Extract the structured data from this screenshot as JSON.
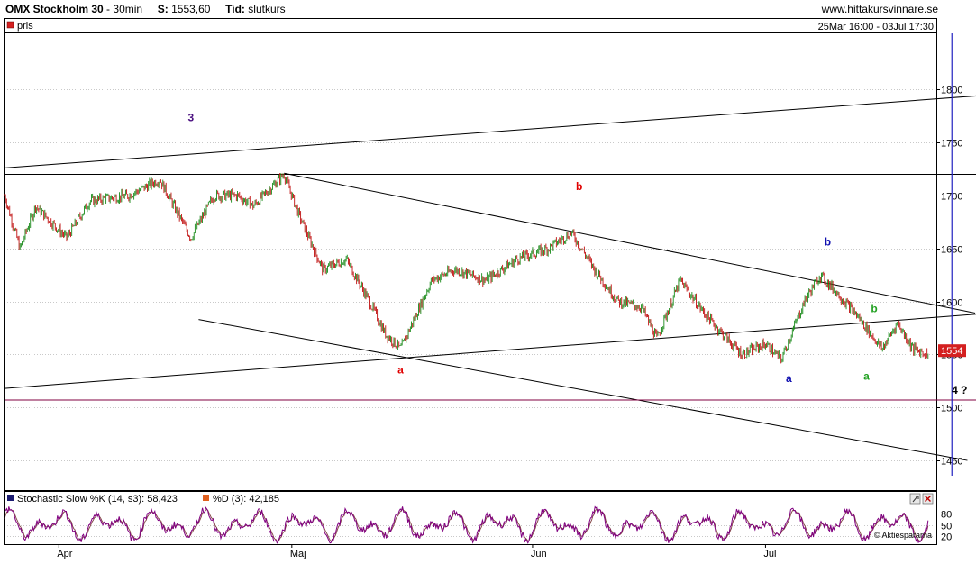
{
  "header": {
    "instrument": "OMX Stockholm 30",
    "interval": "30min",
    "last_label": "S:",
    "last_value": "1553,60",
    "time_label": "Tid:",
    "time_value": "slutkurs",
    "site": "www.hittakursvinnare.se",
    "date_range": "25Mar 16:00 - 03Jul 17:30"
  },
  "legend": {
    "price_label": "pris"
  },
  "colors": {
    "price_up": "#1a8a1a",
    "price_down": "#c01010",
    "last_price_badge": "#d42020",
    "vertical_marker": "#2020c0",
    "support_line": "#800040",
    "stoch_k": "#800080",
    "stoch_d": "#804040",
    "label_purple": "#4b1080",
    "label_red": "#e00000",
    "label_blue": "#1010b0",
    "label_green": "#20a020"
  },
  "chart_data": {
    "type": "line",
    "title": "OMX Stockholm 30",
    "interval": "30min",
    "y_axis": {
      "ticks": [
        1450,
        1500,
        1550,
        1600,
        1650,
        1700,
        1750,
        1800
      ],
      "range": [
        1422,
        1853
      ],
      "position": "right"
    },
    "x_axis": {
      "labels": [
        "Apr",
        "Maj",
        "Jun",
        "Jul"
      ],
      "range": [
        "2008-03-25",
        "2008-07-23"
      ]
    },
    "last_price": {
      "value": 1553.6,
      "badge": "1554"
    },
    "price_anchors": [
      [
        "2008-03-25",
        1700
      ],
      [
        "2008-03-27",
        1650
      ],
      [
        "2008-03-29",
        1690
      ],
      [
        "2008-04-02",
        1660
      ],
      [
        "2008-04-05",
        1695
      ],
      [
        "2008-04-10",
        1700
      ],
      [
        "2008-04-14",
        1715
      ],
      [
        "2008-04-18",
        1660
      ],
      [
        "2008-04-21",
        1700
      ],
      [
        "2008-04-24",
        1700
      ],
      [
        "2008-04-26",
        1690
      ],
      [
        "2008-04-30",
        1720
      ],
      [
        "2008-05-02",
        1680
      ],
      [
        "2008-05-05",
        1630
      ],
      [
        "2008-05-08",
        1640
      ],
      [
        "2008-05-11",
        1600
      ],
      [
        "2008-05-13",
        1570
      ],
      [
        "2008-05-15",
        1555
      ],
      [
        "2008-05-19",
        1620
      ],
      [
        "2008-05-22",
        1630
      ],
      [
        "2008-05-26",
        1620
      ],
      [
        "2008-05-30",
        1640
      ],
      [
        "2008-06-03",
        1650
      ],
      [
        "2008-06-06",
        1665
      ],
      [
        "2008-06-09",
        1630
      ],
      [
        "2008-06-12",
        1600
      ],
      [
        "2008-06-15",
        1595
      ],
      [
        "2008-06-17",
        1565
      ],
      [
        "2008-06-20",
        1620
      ],
      [
        "2008-06-23",
        1590
      ],
      [
        "2008-06-26",
        1565
      ],
      [
        "2008-06-28",
        1550
      ],
      [
        "2008-07-01",
        1560
      ],
      [
        "2008-07-03",
        1545
      ],
      [
        "2008-07-06",
        1600
      ],
      [
        "2008-07-08",
        1625
      ],
      [
        "2008-07-10",
        1610
      ],
      [
        "2008-07-13",
        1585
      ],
      [
        "2008-07-16",
        1555
      ],
      [
        "2008-07-18",
        1580
      ],
      [
        "2008-07-20",
        1555
      ],
      [
        "2008-07-22",
        1550
      ]
    ],
    "trend_lines": [
      {
        "name": "upper-channel",
        "from": [
          "2008-03-25",
          1726
        ],
        "to": [
          "2008-07-30",
          1795
        ],
        "color": "#000000"
      },
      {
        "name": "horizontal-1720",
        "from": [
          "2008-03-25",
          1720
        ],
        "to": [
          "2008-07-30",
          1720
        ],
        "color": "#000000"
      },
      {
        "name": "descending-upper",
        "from": [
          "2008-04-30",
          1721
        ],
        "to": [
          "2008-07-28",
          1589
        ],
        "color": "#000000"
      },
      {
        "name": "rising-support",
        "from": [
          "2008-03-25",
          1518
        ],
        "to": [
          "2008-07-30",
          1589
        ],
        "color": "#000000"
      },
      {
        "name": "descending-lower",
        "from": [
          "2008-04-19",
          1583
        ],
        "to": [
          "2008-07-27",
          1450
        ],
        "color": "#000000"
      },
      {
        "name": "support-1507",
        "from": [
          "2008-03-25",
          1507
        ],
        "to": [
          "2008-07-30",
          1507
        ],
        "color": "#800040"
      }
    ],
    "vertical_marker": {
      "x": "2008-07-25"
    },
    "annotations": [
      {
        "text": "3",
        "x": "2008-04-18",
        "y": 1770,
        "color": "#4b1080"
      },
      {
        "text": "a",
        "x": "2008-05-15",
        "y": 1532,
        "color": "#e00000"
      },
      {
        "text": "b",
        "x": "2008-06-07",
        "y": 1705,
        "color": "#e00000"
      },
      {
        "text": "b",
        "x": "2008-07-09",
        "y": 1653,
        "color": "#1010b0"
      },
      {
        "text": "a",
        "x": "2008-07-04",
        "y": 1524,
        "color": "#1010b0"
      },
      {
        "text": "b",
        "x": "2008-07-15",
        "y": 1590,
        "color": "#20a020"
      },
      {
        "text": "a",
        "x": "2008-07-14",
        "y": 1526,
        "color": "#20a020"
      },
      {
        "text": "4 ?",
        "x": "2008-07-26",
        "y": 1513,
        "color": "#000000"
      }
    ],
    "indicator": {
      "name": "Stochastic Slow",
      "k_label": "Stochastic Slow %K (14, s3): 58,423",
      "d_label": "%D (3): 42,185",
      "k_value": 58.423,
      "d_value": 42.185,
      "range": [
        0,
        100
      ],
      "ticks": [
        20,
        50,
        80
      ]
    },
    "source": "© Aktiespararna"
  }
}
